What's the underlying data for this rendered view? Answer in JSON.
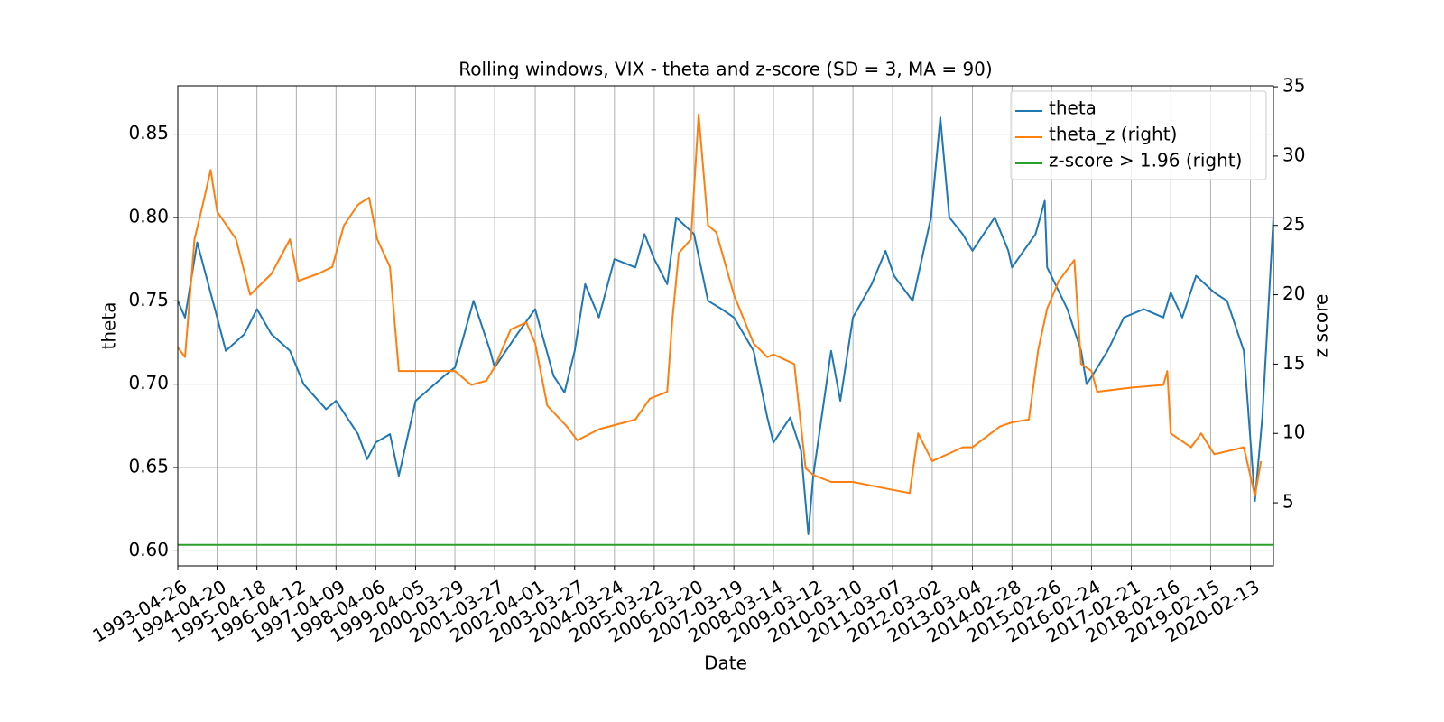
{
  "chart_data": {
    "type": "line",
    "title": "Rolling windows, VIX - theta and z-score (SD = 3, MA = 90)",
    "x_label": "Date",
    "y_label": "theta",
    "y2_label": "z score",
    "grid": true,
    "legend": "upper right",
    "xlim": [
      "1993-04-26",
      "2020-09-10"
    ],
    "xticks": [
      "1993-04-26",
      "1994-04-20",
      "1995-04-18",
      "1996-04-12",
      "1997-04-09",
      "1998-04-06",
      "1999-04-05",
      "2000-03-29",
      "2001-03-27",
      "2002-04-01",
      "2003-03-27",
      "2004-03-24",
      "2005-03-22",
      "2006-03-20",
      "2007-03-19",
      "2008-03-14",
      "2009-03-12",
      "2010-03-10",
      "2011-03-07",
      "2012-03-02",
      "2013-03-04",
      "2014-02-28",
      "2015-02-26",
      "2016-02-24",
      "2017-02-21",
      "2018-02-16",
      "2019-02-15",
      "2020-02-13"
    ],
    "ylim": [
      0.591,
      0.879
    ],
    "yticks": [
      {
        "value": 0.6,
        "label": "0.60"
      },
      0.65,
      {
        "value": 0.7,
        "label": "0.70"
      },
      0.75,
      {
        "value": 0.8,
        "label": "0.80"
      },
      0.85
    ],
    "y2lim": [
      0.45,
      35.07
    ],
    "y2ticks": [
      5,
      10,
      15,
      20,
      25,
      30,
      35
    ],
    "series": [
      {
        "name": "theta",
        "color": "#1f77b4",
        "x": [
          "1993-04-26",
          "1993-07-01",
          "1993-10-20",
          "1994-04-20",
          "1994-07-08",
          "1994-12-25",
          "1995-04-18",
          "1995-08-28",
          "1996-02-14",
          "1996-06-17",
          "1997-01-08",
          "1997-04-09",
          "1997-10-27",
          "1998-01-18",
          "1998-04-06",
          "1998-08-14",
          "1998-11-03",
          "1999-04-05",
          "1999-12-24",
          "2000-03-29",
          "2000-09-15",
          "2001-02-14",
          "2001-03-27",
          "2001-10-19",
          "2002-04-01",
          "2002-09-15",
          "2002-12-24",
          "2003-03-27",
          "2003-07-01",
          "2003-11-03",
          "2004-03-24",
          "2004-10-01",
          "2004-12-24",
          "2005-03-22",
          "2005-07-19",
          "2005-10-08",
          "2006-03-20",
          "2006-07-26",
          "2006-11-28",
          "2007-03-19",
          "2007-09-15",
          "2008-01-18",
          "2008-03-14",
          "2008-08-14",
          "2008-11-21",
          "2009-01-26",
          "2009-03-12",
          "2009-08-22",
          "2009-11-14",
          "2010-03-10",
          "2010-08-28",
          "2011-01-01",
          "2011-03-20",
          "2011-09-05",
          "2012-02-20",
          "2012-05-15",
          "2012-08-05",
          "2012-12-05",
          "2013-03-04",
          "2013-09-24",
          "2014-01-26",
          "2014-02-28",
          "2014-10-01",
          "2014-12-24",
          "2015-01-15",
          "2015-07-19",
          "2015-11-21",
          "2016-01-10",
          "2016-03-01",
          "2016-07-20",
          "2016-12-15",
          "2017-06-15",
          "2017-12-10",
          "2018-02-16",
          "2018-06-01",
          "2018-10-05",
          "2019-03-20",
          "2019-07-15",
          "2019-12-15",
          "2020-03-25",
          "2020-06-01",
          "2020-09-10"
        ],
        "values": [
          0.75,
          0.74,
          0.785,
          0.74,
          0.72,
          0.73,
          0.745,
          0.73,
          0.72,
          0.7,
          0.685,
          0.69,
          0.67,
          0.655,
          0.665,
          0.67,
          0.645,
          0.69,
          0.705,
          0.71,
          0.75,
          0.72,
          0.71,
          0.73,
          0.745,
          0.705,
          0.695,
          0.72,
          0.76,
          0.74,
          0.775,
          0.77,
          0.79,
          0.775,
          0.76,
          0.8,
          0.79,
          0.75,
          0.745,
          0.74,
          0.72,
          0.68,
          0.665,
          0.68,
          0.66,
          0.61,
          0.645,
          0.72,
          0.69,
          0.74,
          0.76,
          0.78,
          0.765,
          0.75,
          0.8,
          0.86,
          0.8,
          0.79,
          0.78,
          0.8,
          0.78,
          0.77,
          0.79,
          0.81,
          0.77,
          0.745,
          0.72,
          0.7,
          0.705,
          0.72,
          0.74,
          0.745,
          0.74,
          0.755,
          0.74,
          0.765,
          0.755,
          0.75,
          0.72,
          0.63,
          0.68,
          0.8
        ]
      },
      {
        "name": "theta_z (right)",
        "color": "#ff7f0e",
        "axis": "y2",
        "x": [
          "1993-04-26",
          "1993-07-01",
          "1993-09-25",
          "1993-12-10",
          "1994-02-20",
          "1994-04-20",
          "1994-10-10",
          "1995-02-15",
          "1995-08-28",
          "1996-02-14",
          "1996-04-30",
          "1996-10-25",
          "1997-03-05",
          "1997-06-20",
          "1997-10-27",
          "1998-02-05",
          "1998-04-20",
          "1998-08-14",
          "1998-11-03",
          "1999-04-05",
          "2000-03-29",
          "2000-08-25",
          "2001-01-10",
          "2001-03-27",
          "2001-08-20",
          "2002-01-10",
          "2002-04-01",
          "2002-07-20",
          "2003-01-15",
          "2003-04-20",
          "2003-11-03",
          "2004-10-01",
          "2005-02-10",
          "2005-07-19",
          "2005-09-01",
          "2005-11-01",
          "2006-02-20",
          "2006-05-01",
          "2006-07-26",
          "2006-10-10",
          "2006-12-20",
          "2007-03-19",
          "2007-09-15",
          "2008-01-18",
          "2008-03-14",
          "2008-09-20",
          "2009-01-01",
          "2009-03-12",
          "2009-08-22",
          "2010-03-10",
          "2011-01-20",
          "2011-08-10",
          "2011-10-25",
          "2012-03-02",
          "2012-12-05",
          "2013-03-04",
          "2013-11-10",
          "2014-02-28",
          "2014-08-01",
          "2014-10-25",
          "2015-01-15",
          "2015-05-01",
          "2015-09-20",
          "2015-11-21",
          "2016-02-24",
          "2016-04-15",
          "2017-02-21",
          "2017-12-10",
          "2018-01-15",
          "2018-02-16",
          "2018-08-20",
          "2018-11-20",
          "2019-03-20",
          "2019-12-15",
          "2020-03-25",
          "2020-05-20"
        ],
        "values": [
          16.2,
          15.5,
          24,
          26.5,
          29,
          26,
          24,
          20,
          21.5,
          24,
          21,
          21.5,
          22,
          25,
          26.5,
          27,
          24,
          22,
          14.5,
          14.5,
          14.5,
          13.5,
          13.8,
          14.8,
          17.5,
          18,
          16.5,
          12,
          10.5,
          9.5,
          10.3,
          11,
          12.5,
          13,
          18,
          23,
          24,
          33,
          25,
          24.5,
          22.5,
          20,
          16.5,
          15.5,
          15.7,
          15,
          7.5,
          7,
          6.5,
          6.5,
          6,
          5.7,
          10,
          8,
          9,
          9,
          10.5,
          10.8,
          11,
          16,
          19,
          21,
          22.5,
          15,
          14.5,
          13,
          13.3,
          13.5,
          14.5,
          10,
          9,
          10,
          8.5,
          9,
          5.5,
          8
        ]
      },
      {
        "name": "z-score > 1.96 (right)",
        "color": "#2ca02c",
        "axis": "y2",
        "x": [
          "1993-04-26",
          "2020-09-10"
        ],
        "values": [
          1.96,
          1.96
        ]
      }
    ]
  }
}
